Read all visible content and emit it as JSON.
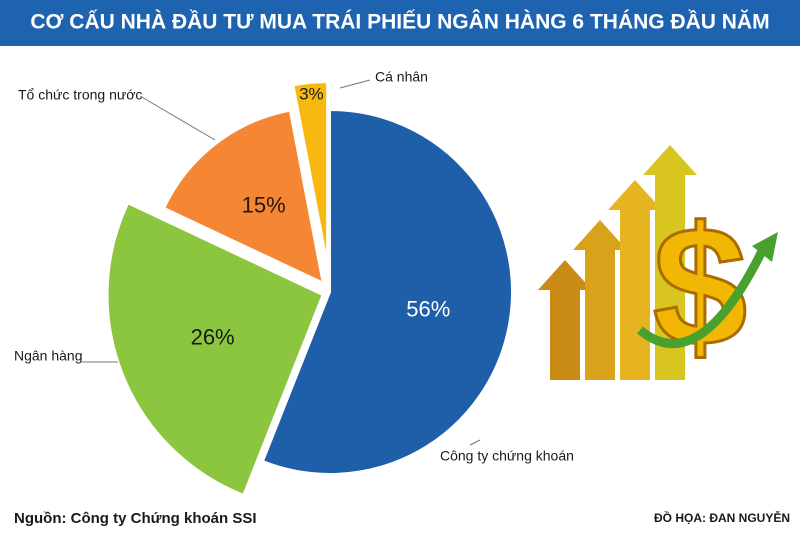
{
  "chart_data": {
    "type": "pie",
    "title": "CƠ CẤU NHÀ ĐẦU TƯ MUA TRÁI PHIẾU NGÂN HÀNG 6 THÁNG ĐẦU NĂM",
    "categories": [
      "Công ty chứng khoán",
      "Ngân hàng",
      "Tổ chức trong nước",
      "Cá nhân"
    ],
    "values": [
      56,
      26,
      15,
      3
    ],
    "value_labels": [
      "56%",
      "26%",
      "15%",
      "3%"
    ],
    "colors": [
      "#1f5ea8",
      "#8cc63f",
      "#f58634",
      "#f7b90f"
    ],
    "source": "Nguồn: Công ty Chứng khoán SSI",
    "credit": "ĐỒ HỌA: ĐAN NGUYỄN"
  }
}
